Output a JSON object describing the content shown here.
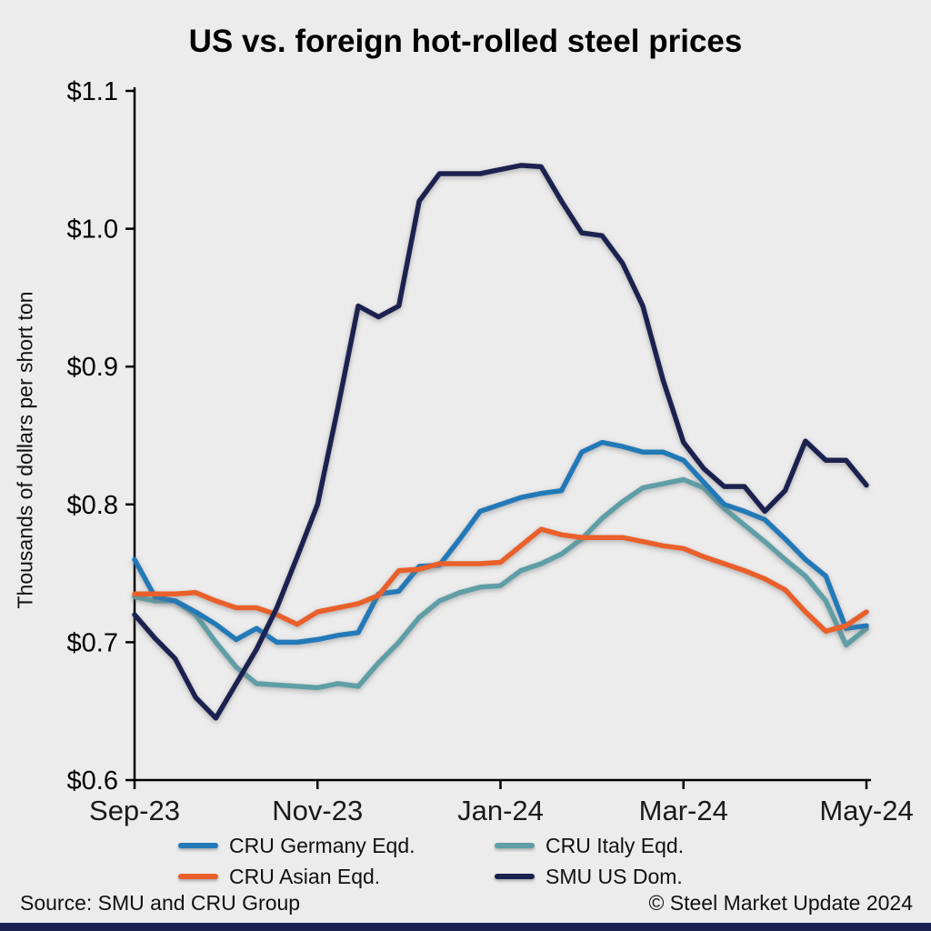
{
  "page": {
    "source": "Source: SMU and CRU Group",
    "copyright": "© Steel Market Update 2024"
  },
  "chart_data": {
    "type": "line",
    "title": "US vs. foreign hot-rolled steel prices",
    "xlabel": "",
    "ylabel": "Thousands of dollars per short ton",
    "ylim": [
      0.6,
      1.1
    ],
    "grid": false,
    "legend_position": "bottom",
    "background_color": "#ececec",
    "accent_bar_color": "#1b2150",
    "line_width": 5.5,
    "y_tick_labels": [
      "$0.6",
      "$0.7",
      "$0.8",
      "$0.9",
      "$1.0",
      "$1.1"
    ],
    "y_tick_values": [
      0.6,
      0.7,
      0.8,
      0.9,
      1.0,
      1.1
    ],
    "x_tick_labels": [
      "Sep-23",
      "Nov-23",
      "Jan-24",
      "Mar-24",
      "May-24"
    ],
    "x_tick_positions": [
      0,
      9,
      18,
      27,
      36
    ],
    "draw_order": [
      1,
      0,
      2,
      3
    ],
    "series": [
      {
        "name": "CRU Germany Eqd.",
        "color": "#2279b8",
        "values": [
          0.76,
          0.733,
          0.73,
          0.722,
          0.713,
          0.702,
          0.71,
          0.7,
          0.7,
          0.702,
          0.705,
          0.707,
          0.735,
          0.737,
          0.755,
          0.756,
          0.775,
          0.795,
          0.8,
          0.805,
          0.808,
          0.81,
          0.838,
          0.845,
          0.842,
          0.838,
          0.838,
          0.832,
          0.816,
          0.8,
          0.795,
          0.789,
          0.775,
          0.76,
          0.748,
          0.71,
          0.712
        ]
      },
      {
        "name": "CRU Italy Eqd.",
        "color": "#5f9ea6",
        "values": [
          0.733,
          0.73,
          0.73,
          0.72,
          0.7,
          0.682,
          0.67,
          0.669,
          0.668,
          0.667,
          0.67,
          0.668,
          0.685,
          0.7,
          0.718,
          0.73,
          0.736,
          0.74,
          0.741,
          0.752,
          0.757,
          0.764,
          0.775,
          0.79,
          0.802,
          0.812,
          0.815,
          0.818,
          0.812,
          0.797,
          0.785,
          0.773,
          0.76,
          0.748,
          0.73,
          0.698,
          0.71
        ]
      },
      {
        "name": "CRU Asian Eqd.",
        "color": "#e9602c",
        "values": [
          0.735,
          0.735,
          0.735,
          0.736,
          0.73,
          0.725,
          0.725,
          0.72,
          0.713,
          0.722,
          0.725,
          0.728,
          0.734,
          0.752,
          0.753,
          0.757,
          0.757,
          0.757,
          0.758,
          0.77,
          0.782,
          0.778,
          0.776,
          0.776,
          0.776,
          0.773,
          0.77,
          0.768,
          0.762,
          0.757,
          0.752,
          0.746,
          0.738,
          0.722,
          0.708,
          0.712,
          0.722
        ]
      },
      {
        "name": "SMU US Dom.",
        "color": "#1b2150",
        "values": [
          0.72,
          0.703,
          0.688,
          0.66,
          0.645,
          0.67,
          0.695,
          0.725,
          0.762,
          0.8,
          0.87,
          0.944,
          0.936,
          0.944,
          1.02,
          1.04,
          1.04,
          1.04,
          1.043,
          1.046,
          1.045,
          1.02,
          0.997,
          0.995,
          0.975,
          0.944,
          0.89,
          0.845,
          0.826,
          0.813,
          0.813,
          0.795,
          0.81,
          0.846,
          0.832,
          0.832,
          0.814
        ]
      }
    ]
  }
}
